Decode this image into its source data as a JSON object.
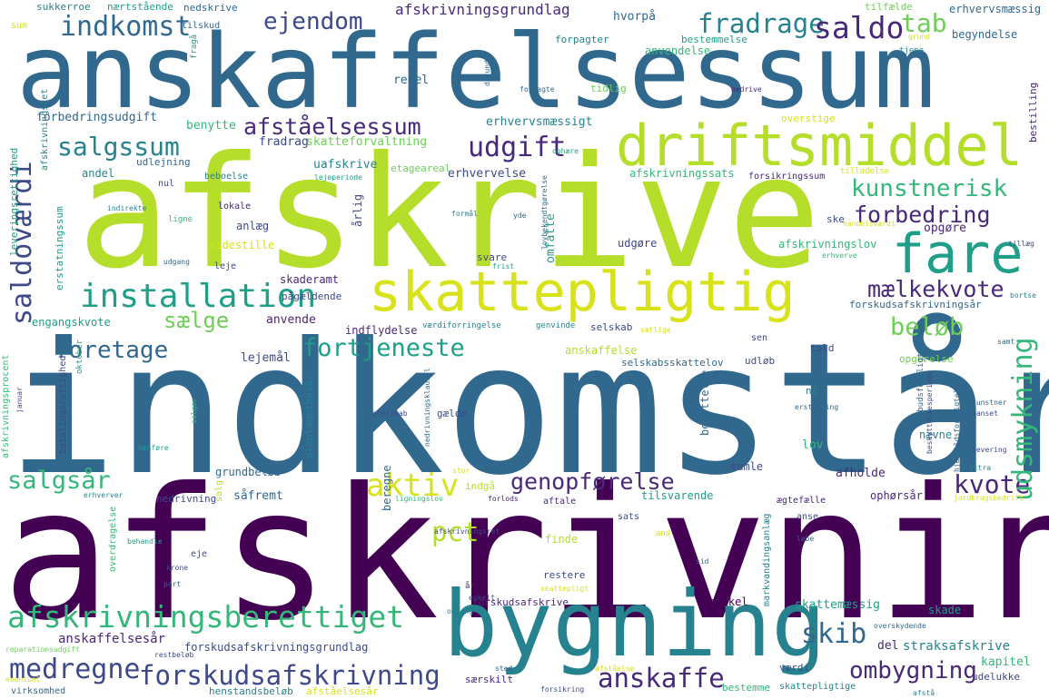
{
  "words": {
    "anskaffelsessum": "anskaffelsessum",
    "afskrive": "afskrive",
    "indkomstaar": "indkomstår",
    "afskrivning": "afskrivning",
    "bygning": "bygning",
    "driftsmiddel": "driftsmiddel",
    "skattepligtig": "skattepligtig",
    "fare": "fare",
    "installation": "installation",
    "afskrivningsberettiget": "afskrivningsberettiget",
    "forskudsafskrivning": "forskudsafskrivning",
    "fortjeneste": "fortjeneste",
    "saldovaerdi": "saldoværdi",
    "udsmykning": "udsmykning",
    "indkomst": "indkomst",
    "ejendom": "ejendom",
    "fradrage": "fradrage",
    "saldo": "saldo",
    "tab": "tab",
    "afstaaelsessum": "afståelsessum",
    "salgssum": "salgssum",
    "udgift": "udgift",
    "kunstnerisk": "kunstnerisk",
    "forbedring": "forbedring",
    "maelkekvote": "mælkekvote",
    "saelge": "sælge",
    "foretage": "foretage",
    "beloeb": "beløb",
    "aktiv": "aktiv",
    "genopfoerelse": "genopførelse",
    "kvote": "kvote",
    "pct": "pct",
    "salgsaar": "salgsår",
    "skib": "skib",
    "medregne": "medregne",
    "anskaffe": "anskaffe",
    "ombygning": "ombygning",
    "afskrivningsgrundlag": "afskrivningsgrundlag",
    "sukkerroe": "sukkerroe",
    "naertstaaende": "nærtstående",
    "nedskrive": "nedskrive",
    "hvorpaa": "hvorpå",
    "tilfaelde": "tilfælde",
    "erhvervsmaessig": "erhvervsmæssig",
    "sum": "sum",
    "tilskud": "tilskud",
    "forpagter": "forpagter",
    "bestemmelse": "bestemmelse",
    "anvendelse": "anvendelse",
    "begyndelse": "begyndelse",
    "grund": "grund",
    "tjene": "tjene",
    "fragaa": "fragå",
    "regel": "regel",
    "tidlig": "tidlig",
    "derunder": "derunder",
    "forpagte": "forpagte",
    "nedrive": "nedrive",
    "bestilling": "bestilling",
    "forbedringsudgift": "forbedringsudgift",
    "benytte": "benytte",
    "erhvervsmaessigt": "erhvervsmæssigt",
    "overstige": "overstige",
    "fradrag": "fradrag",
    "skatteforvaltning": "skatteforvaltning",
    "ophaere": "ophære",
    "afskrivningsret": "afskrivningsret",
    "andel": "andel",
    "udlejning": "udlejning",
    "uafskrive": "uafskrive",
    "erhvervelse": "erhvervelse",
    "afskrivningssats": "afskrivningssats",
    "tilladelse": "tilladelse",
    "forsikringssum": "forsikringssum",
    "beboelse": "beboelse",
    "lejeperiode": "lejeperiode",
    "nul": "nul",
    "etageareal": "etageareal",
    "aarlig": "årlig",
    "lokale": "lokale",
    "indirekte": "indirekte",
    "ligne": "ligne",
    "formaal": "formål",
    "yde": "yde",
    "lovbekendtgoerelse": "lovbekendtgørelse",
    "handelsvaerdi": "handelsværdi",
    "ske": "ske",
    "anlaeg": "anlæg",
    "omfatte": "omfatte",
    "opgoere": "opgøre",
    "afskrivningslov": "afskrivningslov",
    "tillaeg": "tillæg",
    "sidestille": "sidestille",
    "udgoere": "udgøre",
    "svare": "svare",
    "erhverve": "erhverve",
    "frist": "frist",
    "udgang": "udgang",
    "leje": "leje",
    "leveringsrettighed": "leveringsrettighed",
    "erstatningssum": "erstatningssum",
    "skaderamt": "skaderamt",
    "paagaeldende": "pågældende",
    "engangskvote": "engangskvote",
    "anvende": "anvende",
    "indflydelse": "indflydelse",
    "vaerdiforringelse": "værdiforringelse",
    "genvinde": "genvinde",
    "selskab": "selskab",
    "saetlige": "sætlige",
    "forskudsafskrivningsaar": "forskudsafskrivningsår",
    "bortse": "bortse",
    "sen": "sen",
    "samt": "samt",
    "lejemaal": "lejemål",
    "planlaegningsaar": "planlægningsår",
    "anskaffelse": "anskaffelse",
    "told": "told",
    "selskabsskattelov": "selskabsskattelov",
    "udloeb": "udløb",
    "opgoerelse": "opgørelse",
    "oktober": "oktober",
    "januar": "januar",
    "betalingsrettighed": "betalingsrettighed",
    "afskrivningsprocent": "afskrivningsprocent",
    "ejerskab": "ejerskab",
    "gaelde": "gælde",
    "nedrivningsklausul": "nedrivningsklausul",
    "naa": "nå",
    "erstatning": "erstatning",
    "tilbudstrafikken": "tilbudsforpligtelse",
    "kunstner": "kunstner",
    "uanset": "uanset",
    "naevne": "nævne",
    "lov": "lov",
    "levering": "levering",
    "beskyttelsesperiode": "beskyttelsesperiode",
    "hjemfaldsforpligtelse": "hjemfaldsforpligtelse",
    "benyttelse": "benyttelse",
    "henfoere": "henføre",
    "salger": "salger",
    "grundbeloeb": "grundbeløb",
    "salg": "salg",
    "beregne": "beregne",
    "samle": "samle",
    "afholde": "afholde",
    "litra": "litra",
    "erhverver": "erhverver",
    "nedrivning": "nedrivning",
    "saafremt": "såfremt",
    "ligningslov": "ligningslov",
    "forlods": "forlods",
    "aftale": "aftale",
    "tilsvarende": "tilsvarende",
    "aegtefaelle": "ægtefælle",
    "ophoersaar": "ophørsår",
    "jordbrugsbedrift": "jordbrugsbedrift",
    "indgaa": "indgå",
    "stor": "stor",
    "sats": "sats",
    "anse": "anse",
    "afskrivningsret2": "afskrivningsret",
    "behandle": "behandle",
    "finde": "finde",
    "markvandingsanlaeg": "markvandingsanlæg",
    "and": "and",
    "loebe": "løbe",
    "overdragelse": "overdragelse",
    "eje": "eje",
    "krone": "krone",
    "part": "part",
    "aar": "år",
    "enkelt": "enkelt",
    "restere": "restere",
    "sid": "sid",
    "skattepligt": "skattepligt",
    "forskudsafskrive": "forskudsafskrive",
    "omfang": "omfang",
    "forskel": "forskel",
    "skattemaessig": "skattemæssig",
    "skade": "skade",
    "anskaffelsesaar": "anskaffelsesår",
    "forskudsafskrivningsgrundlag": "forskudsafskrivningsgrundlag",
    "del": "del",
    "straksafskrive": "straksafskrive",
    "overskydende": "overskydende",
    "reparationsudgift": "reparationsudgift",
    "restbeloeb": "restbeløb",
    "saerskilt": "særskilt",
    "vaerdi": "værdi",
    "kapitel": "kapitel",
    "udelukke": "udelukke",
    "eventuel": "eventuel",
    "virksomhed": "virksomhed",
    "henstandsbeloeb": "henstandsbeløb",
    "afstaaelsesaar": "afståelsesår",
    "sted": "sted",
    "forsikring": "forsikring",
    "afstaaelse": "afståelse",
    "bestemme": "bestemme",
    "skattepligtige": "skattepligtige",
    "afstaa": "afstå"
  }
}
